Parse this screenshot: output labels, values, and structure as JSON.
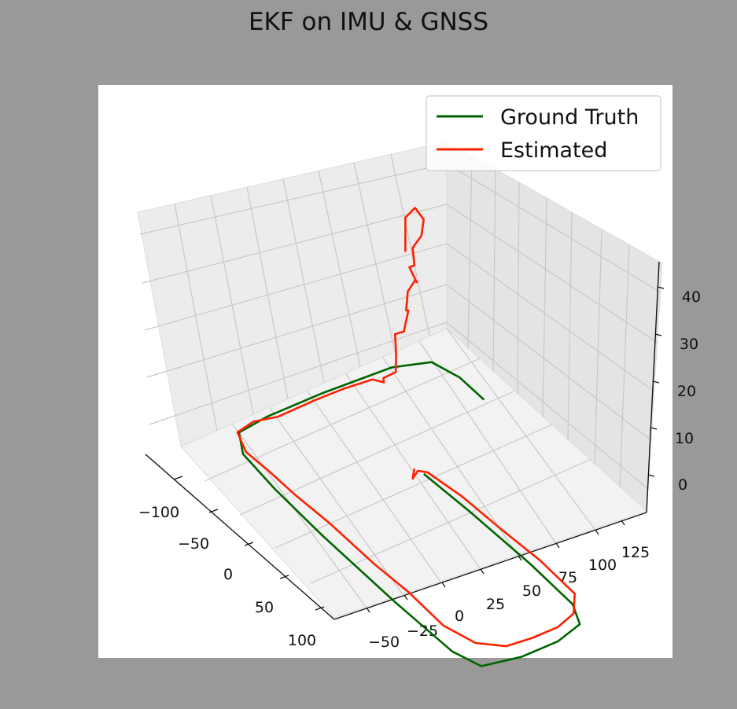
{
  "title": "EKF on IMU & GNSS",
  "chart_data": {
    "type": "line",
    "projection": "3d",
    "title": "EKF on IMU & GNSS",
    "xlabel": "",
    "ylabel": "",
    "zlabel": "",
    "grid": true,
    "legend_position": "top-right",
    "x_ticks": [
      "−50",
      "−25",
      "0",
      "25",
      "50",
      "75",
      "100",
      "125"
    ],
    "y_ticks": [
      "−100",
      "−50",
      "0",
      "50",
      "100"
    ],
    "z_ticks": [
      "0",
      "10",
      "20",
      "30",
      "40"
    ],
    "series": [
      {
        "name": "Ground Truth",
        "color": "#006400",
        "points": [
          [
            10,
            -18,
            0
          ],
          [
            40,
            -21,
            0
          ],
          [
            80,
            -23,
            0
          ],
          [
            110,
            -22,
            0
          ],
          [
            122,
            -13,
            0
          ],
          [
            126,
            12,
            0
          ],
          [
            126,
            45,
            0
          ],
          [
            122,
            76,
            0
          ],
          [
            108,
            84,
            0
          ],
          [
            70,
            86,
            0
          ],
          [
            20,
            86,
            0
          ],
          [
            -15,
            84,
            0
          ],
          [
            -40,
            80,
            0
          ],
          [
            -52,
            68,
            0
          ],
          [
            -54,
            40,
            0
          ],
          [
            -54,
            -10,
            0
          ],
          [
            -52,
            -70,
            0
          ],
          [
            -46,
            -98,
            0
          ],
          [
            -32,
            -105,
            0
          ],
          [
            -15,
            -105,
            0
          ]
        ]
      },
      {
        "name": "Estimated",
        "color": "#ff2000",
        "points": [
          [
            -35,
            -60,
            30
          ],
          [
            -38,
            -64,
            36
          ],
          [
            -36,
            -70,
            38
          ],
          [
            -33,
            -74,
            36
          ],
          [
            -30,
            -68,
            34
          ],
          [
            -33,
            -64,
            31
          ],
          [
            -31,
            -63,
            28
          ],
          [
            -36,
            -65,
            26
          ],
          [
            -34,
            -69,
            23
          ],
          [
            -38,
            -73,
            22
          ],
          [
            -41,
            -70,
            19
          ],
          [
            -39,
            -66,
            16
          ],
          [
            -36,
            -64,
            17
          ],
          [
            -36,
            -60,
            13
          ],
          [
            -39,
            -56,
            12
          ],
          [
            -36,
            -53,
            9
          ],
          [
            -34,
            -50,
            6
          ],
          [
            -41,
            -48,
            3
          ],
          [
            -46,
            -55,
            0
          ],
          [
            -50,
            -50,
            0
          ],
          [
            -54,
            -30,
            -1
          ],
          [
            -52,
            0,
            0
          ],
          [
            -54,
            30,
            -1
          ],
          [
            -52,
            55,
            1
          ],
          [
            -50,
            72,
            1
          ],
          [
            -38,
            80,
            1
          ],
          [
            -20,
            82,
            2
          ],
          [
            0,
            85,
            3
          ],
          [
            25,
            86,
            4
          ],
          [
            55,
            86,
            4
          ],
          [
            80,
            87,
            5
          ],
          [
            105,
            88,
            5
          ],
          [
            121,
            80,
            5
          ],
          [
            127,
            60,
            4
          ],
          [
            126,
            35,
            3
          ],
          [
            126,
            12,
            3
          ],
          [
            120,
            -10,
            2
          ],
          [
            110,
            -24,
            2
          ],
          [
            85,
            -25,
            2
          ],
          [
            60,
            -22,
            2
          ],
          [
            35,
            -20,
            2
          ],
          [
            15,
            -15,
            2
          ],
          [
            12,
            -10,
            2
          ],
          [
            10,
            -8,
            0
          ],
          [
            8,
            -12,
            1
          ],
          [
            6,
            -15,
            0
          ]
        ]
      }
    ]
  }
}
